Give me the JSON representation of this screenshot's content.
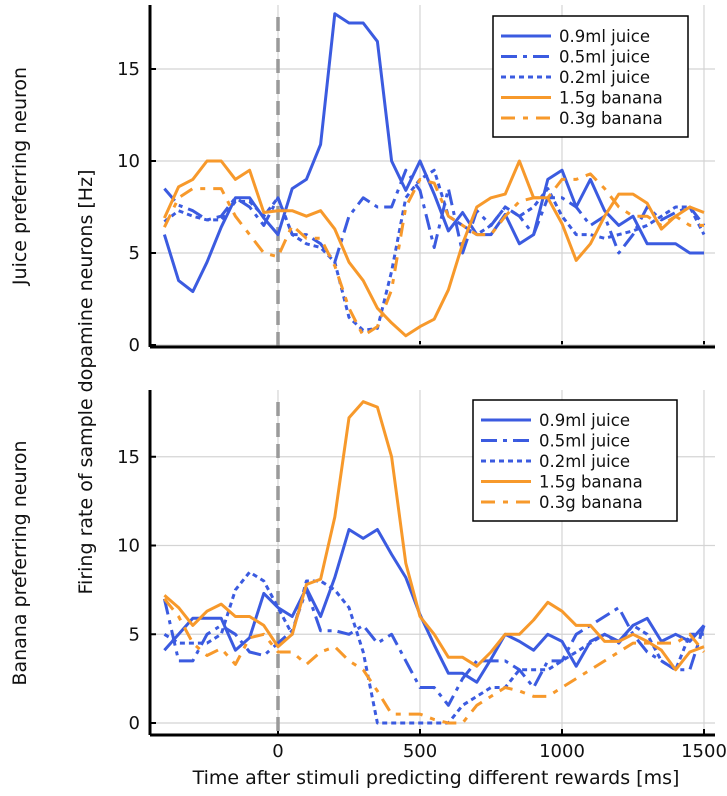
{
  "chart_data": [
    {
      "type": "line",
      "panel_label": "Juice preferring neuron",
      "ylabel": "Firing rate of sample dopamine neurons [Hz]",
      "xlabel": "Time after stimuli predicting different rewards [ms]",
      "xlim": [
        -450,
        1540
      ],
      "ylim": [
        0,
        18.5
      ],
      "xticks": [
        0,
        500,
        1000,
        1500
      ],
      "yticks": [
        0,
        5,
        10,
        15
      ],
      "grid": true,
      "legend_position": "top-right",
      "stimulus_marker_x": 0,
      "x": [
        -400,
        -350,
        -300,
        -250,
        -200,
        -150,
        -100,
        -50,
        0,
        50,
        100,
        150,
        200,
        250,
        300,
        350,
        400,
        450,
        500,
        550,
        600,
        650,
        700,
        750,
        800,
        850,
        900,
        950,
        1000,
        1050,
        1100,
        1150,
        1200,
        1250,
        1300,
        1350,
        1400,
        1450,
        1500
      ],
      "series": [
        {
          "name": "0.9ml juice",
          "color": "#3b5be0",
          "style": "solid",
          "values": [
            6.0,
            3.5,
            2.9,
            4.5,
            6.4,
            8.0,
            8.0,
            6.9,
            6.0,
            8.5,
            9.0,
            10.9,
            18.0,
            17.5,
            17.5,
            16.5,
            10.0,
            8.4,
            10.0,
            8.2,
            6.2,
            7.2,
            6.0,
            6.0,
            7.1,
            5.5,
            6.0,
            9.0,
            9.5,
            7.5,
            9.0,
            7.3,
            6.5,
            7.0,
            5.5,
            5.5,
            5.5,
            5.0,
            5.0
          ]
        },
        {
          "name": "0.5ml juice",
          "color": "#3b5be0",
          "style": "dashed",
          "values": [
            8.5,
            7.6,
            7.3,
            6.8,
            7.0,
            8.0,
            7.5,
            6.5,
            8.0,
            6.0,
            6.0,
            5.5,
            4.5,
            7.0,
            8.0,
            7.5,
            7.5,
            9.5,
            8.4,
            5.3,
            8.5,
            5.0,
            7.3,
            6.5,
            7.5,
            7.0,
            6.0,
            8.0,
            8.0,
            7.5,
            6.5,
            7.0,
            5.0,
            6.0,
            7.5,
            6.8,
            7.2,
            7.5,
            6.5
          ]
        },
        {
          "name": "0.2ml juice",
          "color": "#3b5be0",
          "style": "dotted",
          "values": [
            6.7,
            7.3,
            7.0,
            6.8,
            6.8,
            7.8,
            7.8,
            7.0,
            8.0,
            6.0,
            5.5,
            5.3,
            4.5,
            1.5,
            0.8,
            0.9,
            4.0,
            8.0,
            9.0,
            9.5,
            7.0,
            6.5,
            6.0,
            6.5,
            7.5,
            7.0,
            7.5,
            8.5,
            7.0,
            6.0,
            6.0,
            5.8,
            6.0,
            6.2,
            6.5,
            7.0,
            7.5,
            7.5,
            6.0
          ]
        },
        {
          "name": "1.5g banana",
          "color": "#f7992b",
          "style": "solid",
          "values": [
            6.9,
            8.6,
            9.0,
            10.0,
            10.0,
            9.0,
            9.5,
            7.2,
            7.3,
            7.3,
            7.0,
            7.3,
            6.3,
            4.5,
            3.5,
            2.0,
            1.2,
            0.5,
            1.0,
            1.4,
            3.0,
            5.5,
            7.5,
            8.0,
            8.2,
            10.0,
            8.0,
            8.0,
            6.6,
            4.6,
            5.5,
            7.0,
            8.2,
            8.2,
            7.7,
            6.3,
            7.0,
            7.5,
            7.2
          ]
        },
        {
          "name": "0.3g banana",
          "color": "#f7992b",
          "style": "dashdot",
          "values": [
            6.4,
            8.0,
            8.5,
            8.5,
            8.5,
            7.0,
            6.0,
            5.0,
            4.8,
            6.5,
            5.8,
            5.8,
            4.3,
            2.0,
            0.5,
            1.0,
            3.0,
            7.5,
            9.0,
            8.8,
            7.0,
            6.5,
            6.0,
            6.0,
            7.0,
            7.8,
            8.0,
            8.0,
            9.0,
            9.0,
            9.3,
            8.5,
            7.5,
            7.0,
            7.0,
            6.5,
            7.0,
            6.5,
            6.5
          ]
        }
      ]
    },
    {
      "type": "line",
      "panel_label": "Banana preferring neuron",
      "xlim": [
        -450,
        1540
      ],
      "ylim": [
        0,
        18.8
      ],
      "xticks": [
        0,
        500,
        1000,
        1500
      ],
      "yticks": [
        0,
        5,
        10,
        15
      ],
      "grid": true,
      "legend_position": "top-right",
      "stimulus_marker_x": 0,
      "x": [
        -400,
        -350,
        -300,
        -250,
        -200,
        -150,
        -100,
        -50,
        0,
        50,
        100,
        150,
        200,
        250,
        300,
        350,
        400,
        450,
        500,
        550,
        600,
        650,
        700,
        750,
        800,
        850,
        900,
        950,
        1000,
        1050,
        1100,
        1150,
        1200,
        1250,
        1300,
        1350,
        1400,
        1450,
        1500
      ],
      "series": [
        {
          "name": "0.9ml juice",
          "color": "#3b5be0",
          "style": "solid",
          "values": [
            4.1,
            5.0,
            5.9,
            5.9,
            5.9,
            4.1,
            4.8,
            7.3,
            6.5,
            6.0,
            7.6,
            6.0,
            8.2,
            10.9,
            10.4,
            10.9,
            9.5,
            8.2,
            6.1,
            4.4,
            2.8,
            2.8,
            2.3,
            3.6,
            5.0,
            4.6,
            4.1,
            5.0,
            4.6,
            3.2,
            4.6,
            5.0,
            4.6,
            5.5,
            5.9,
            4.6,
            5.0,
            4.6,
            5.5
          ]
        },
        {
          "name": "0.5ml juice",
          "color": "#3b5be0",
          "style": "dashed",
          "values": [
            7.0,
            3.5,
            3.5,
            5.0,
            5.5,
            5.0,
            4.0,
            3.8,
            4.5,
            5.2,
            7.5,
            5.2,
            5.2,
            5.0,
            5.5,
            4.5,
            5.0,
            3.5,
            2.0,
            2.0,
            1.0,
            2.5,
            3.5,
            3.5,
            3.5,
            3.0,
            2.0,
            3.5,
            3.5,
            5.0,
            5.5,
            6.0,
            6.5,
            5.0,
            4.0,
            3.5,
            3.0,
            3.0,
            5.5
          ]
        },
        {
          "name": "0.2ml juice",
          "color": "#3b5be0",
          "style": "dotted",
          "values": [
            5.0,
            4.5,
            4.5,
            4.5,
            5.0,
            7.5,
            8.5,
            8.0,
            6.5,
            5.0,
            8.0,
            8.0,
            7.5,
            6.5,
            4.0,
            0,
            0,
            0,
            0,
            0,
            0,
            1.0,
            1.5,
            2.0,
            2.0,
            3.0,
            3.0,
            3.0,
            3.5,
            4.0,
            4.5,
            5.0,
            4.5,
            5.5,
            5.0,
            3.5,
            3.0,
            5.0,
            5.0
          ]
        },
        {
          "name": "1.5g banana",
          "color": "#f7992b",
          "style": "solid",
          "values": [
            7.2,
            6.5,
            5.5,
            6.3,
            6.7,
            6.0,
            6.0,
            5.5,
            4.3,
            5.0,
            7.8,
            8.1,
            11.6,
            17.2,
            18.1,
            17.8,
            15.0,
            9.0,
            6.0,
            5.0,
            3.7,
            3.7,
            3.2,
            4.0,
            5.0,
            5.0,
            5.8,
            6.8,
            6.3,
            5.5,
            5.5,
            4.6,
            4.6,
            5.0,
            4.6,
            4.1,
            3.0,
            4.0,
            4.3
          ]
        },
        {
          "name": "0.3g banana",
          "color": "#f7992b",
          "style": "dashdot",
          "values": [
            7.0,
            6.0,
            4.5,
            3.8,
            4.2,
            3.3,
            4.8,
            5.0,
            4.0,
            4.0,
            3.3,
            4.0,
            4.3,
            3.5,
            3.0,
            1.8,
            0.5,
            0.5,
            0.5,
            0.2,
            0,
            0,
            1.0,
            1.5,
            2.0,
            1.8,
            1.5,
            1.5,
            2.0,
            2.5,
            3.0,
            3.5,
            4.0,
            4.5,
            4.5,
            4.5,
            4.5,
            5.0,
            4.0
          ]
        }
      ]
    }
  ]
}
